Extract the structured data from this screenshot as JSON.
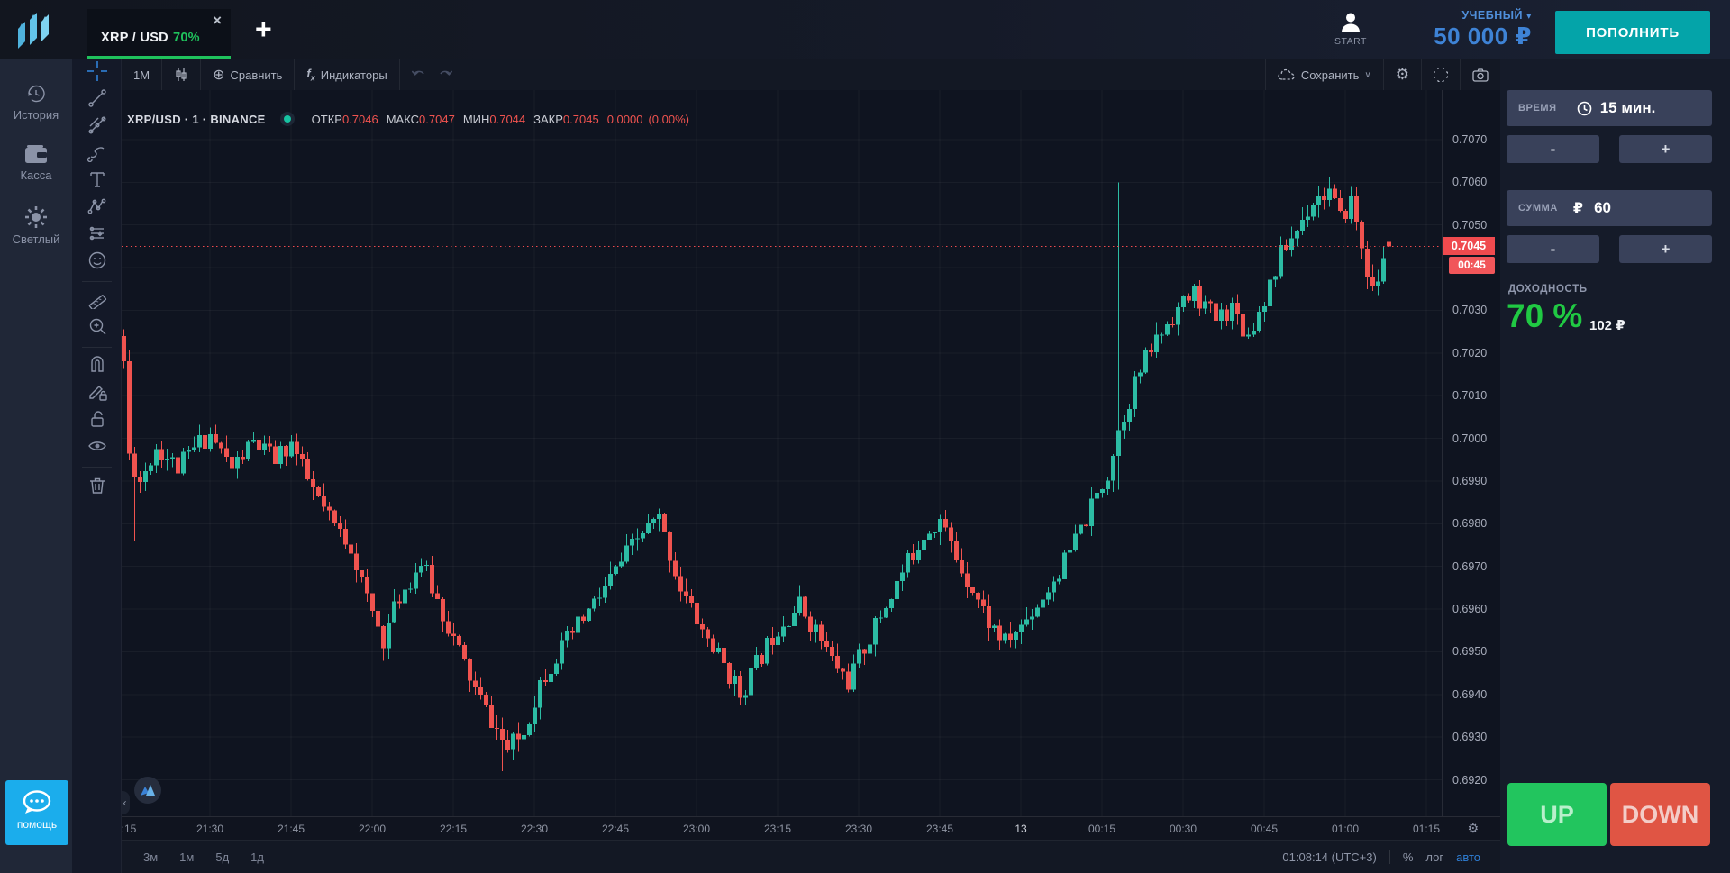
{
  "header": {
    "tab": {
      "symbol": "XRP / USD",
      "payout": "70%",
      "close": "×"
    },
    "new_tab": "+",
    "account": {
      "user_label": "START",
      "type": "УЧЕБНЫЙ",
      "type_chevron": "▾",
      "balance": "50 000 ₽"
    },
    "deposit_label": "ПОПОЛНИТЬ"
  },
  "sidebar": {
    "items": [
      {
        "icon": "history-icon",
        "label": "История"
      },
      {
        "icon": "wallet-icon",
        "label": "Касса"
      },
      {
        "icon": "theme-icon",
        "label": "Светлый"
      }
    ],
    "help_label": "помощь"
  },
  "chart_toolbar": {
    "interval": "1M",
    "compare_icon": "⊕",
    "compare": "Сравнить",
    "indicators": "Индикаторы",
    "save": "Сохранить",
    "save_chevron": "∨",
    "settings_icon": "⚙"
  },
  "drawing_toolbar": {
    "tools": [
      "crosshair",
      "trend-line",
      "gann-fib",
      "brush",
      "text",
      "pattern",
      "forecast",
      "emoji",
      "ruler",
      "zoom-in",
      "magnet",
      "drawing-lock",
      "lock-all",
      "hide-all",
      "remove-all"
    ]
  },
  "legend": {
    "title": "XRP/USD · 1 · BINANCE",
    "open_label": "ОТКР",
    "open": "0.7046",
    "high_label": "МАКС",
    "high": "0.7047",
    "low_label": "МИН",
    "low": "0.7044",
    "close_label": "ЗАКР",
    "close": "0.7045",
    "change": "0.0000",
    "change_pct": "(0.00%)"
  },
  "price_axis": {
    "ticks": [
      "0.7070",
      "0.7060",
      "0.7050",
      "0.7040",
      "0.7030",
      "0.7020",
      "0.7010",
      "0.7000",
      "0.6990",
      "0.6980",
      "0.6970",
      "0.6960",
      "0.6950",
      "0.6940",
      "0.6930",
      "0.6920"
    ],
    "current_price": "0.7045",
    "countdown": "00:45"
  },
  "time_axis": {
    "labels": [
      ":15",
      "21:30",
      "21:45",
      "22:00",
      "22:15",
      "22:30",
      "22:45",
      "23:00",
      "23:15",
      "23:30",
      "23:45",
      "13",
      "00:15",
      "00:30",
      "00:45",
      "01:00",
      "01:15"
    ],
    "emphasized_index": 11,
    "settings_icon": "⚙"
  },
  "bottom_bar": {
    "ranges": [
      "3м",
      "1м",
      "5д",
      "1д"
    ],
    "clock": "01:08:14 (UTC+3)",
    "percent": "%",
    "log": "лог",
    "auto": "авто"
  },
  "trade_panel": {
    "time_label": "ВРЕМЯ",
    "time_value": "15 мин.",
    "amount_label": "СУММА",
    "amount_currency": "₽",
    "amount_value": "60",
    "minus": "-",
    "plus": "+",
    "payout_label": "ДОХОДНОСТЬ",
    "payout_pct": "70 %",
    "payout_amount": "102 ₽",
    "up_label": "UP",
    "down_label": "DOWN"
  },
  "misc": {
    "collapse_handle": "‹"
  },
  "colors": {
    "candle_up": "#2cbca4",
    "candle_down": "#f0534f",
    "price_line": "#ef4a4e",
    "grid": "rgba(255,255,255,0.045)",
    "accent_green": "#1fc25c",
    "accent_blue": "#3e83d6",
    "deposit_teal": "#04a4a9",
    "up_button": "#22c55e",
    "down_button": "#e05544"
  },
  "chart_data": {
    "type": "candlestick",
    "symbol": "XRP/USD",
    "interval_minutes": 1,
    "exchange": "BINANCE",
    "visible_time_range": [
      "21:14",
      "01:15"
    ],
    "y_range": [
      0.692,
      0.707
    ],
    "grid": true,
    "start_time": "21:14",
    "candle_count": 235,
    "current_price": 0.7045,
    "last_candle": {
      "open": 0.7046,
      "high": 0.7047,
      "low": 0.7044,
      "close": 0.7045
    },
    "price_keypoints": [
      [
        0,
        0.7018
      ],
      [
        1,
        0.6996
      ],
      [
        3,
        0.699
      ],
      [
        6,
        0.6998
      ],
      [
        10,
        0.6993
      ],
      [
        14,
        0.6999
      ],
      [
        16,
        0.7001
      ],
      [
        20,
        0.6993
      ],
      [
        24,
        0.6999
      ],
      [
        28,
        0.6995
      ],
      [
        31,
        0.6999
      ],
      [
        34,
        0.699
      ],
      [
        38,
        0.6981
      ],
      [
        42,
        0.6975
      ],
      [
        45,
        0.6962
      ],
      [
        48,
        0.6953
      ],
      [
        51,
        0.6963
      ],
      [
        55,
        0.6971
      ],
      [
        58,
        0.6962
      ],
      [
        62,
        0.695
      ],
      [
        65,
        0.6941
      ],
      [
        68,
        0.6934
      ],
      [
        71,
        0.6927
      ],
      [
        74,
        0.6931
      ],
      [
        77,
        0.6943
      ],
      [
        80,
        0.6949
      ],
      [
        84,
        0.6956
      ],
      [
        88,
        0.6963
      ],
      [
        92,
        0.6971
      ],
      [
        96,
        0.6978
      ],
      [
        99,
        0.6981
      ],
      [
        103,
        0.6965
      ],
      [
        107,
        0.6955
      ],
      [
        111,
        0.6947
      ],
      [
        114,
        0.694
      ],
      [
        117,
        0.6947
      ],
      [
        121,
        0.6956
      ],
      [
        125,
        0.6961
      ],
      [
        128,
        0.6955
      ],
      [
        131,
        0.6948
      ],
      [
        134,
        0.6943
      ],
      [
        137,
        0.6951
      ],
      [
        141,
        0.6961
      ],
      [
        145,
        0.6971
      ],
      [
        148,
        0.6978
      ],
      [
        151,
        0.6981
      ],
      [
        154,
        0.6972
      ],
      [
        157,
        0.6965
      ],
      [
        160,
        0.6957
      ],
      [
        163,
        0.6952
      ],
      [
        166,
        0.6956
      ],
      [
        170,
        0.6963
      ],
      [
        174,
        0.6971
      ],
      [
        178,
        0.6981
      ],
      [
        182,
        0.6992
      ],
      [
        184,
        0.7002
      ],
      [
        187,
        0.7013
      ],
      [
        190,
        0.7021
      ],
      [
        194,
        0.7029
      ],
      [
        198,
        0.7034
      ],
      [
        202,
        0.7028
      ],
      [
        205,
        0.7031
      ],
      [
        208,
        0.7024
      ],
      [
        211,
        0.7033
      ],
      [
        214,
        0.7043
      ],
      [
        217,
        0.7049
      ],
      [
        220,
        0.7056
      ],
      [
        223,
        0.7058
      ],
      [
        225,
        0.7051
      ],
      [
        227,
        0.7056
      ],
      [
        229,
        0.7045
      ],
      [
        231,
        0.7034
      ],
      [
        233,
        0.7041
      ],
      [
        234,
        0.7045
      ]
    ],
    "wick_extremes": {
      "2": {
        "low": 0.6976
      },
      "70": {
        "low": 0.6922
      },
      "184": {
        "high": 0.706,
        "low": 0.6988
      },
      "234": {
        "open": 0.7046,
        "high": 0.7047,
        "low": 0.7044,
        "close": 0.7045
      }
    }
  }
}
